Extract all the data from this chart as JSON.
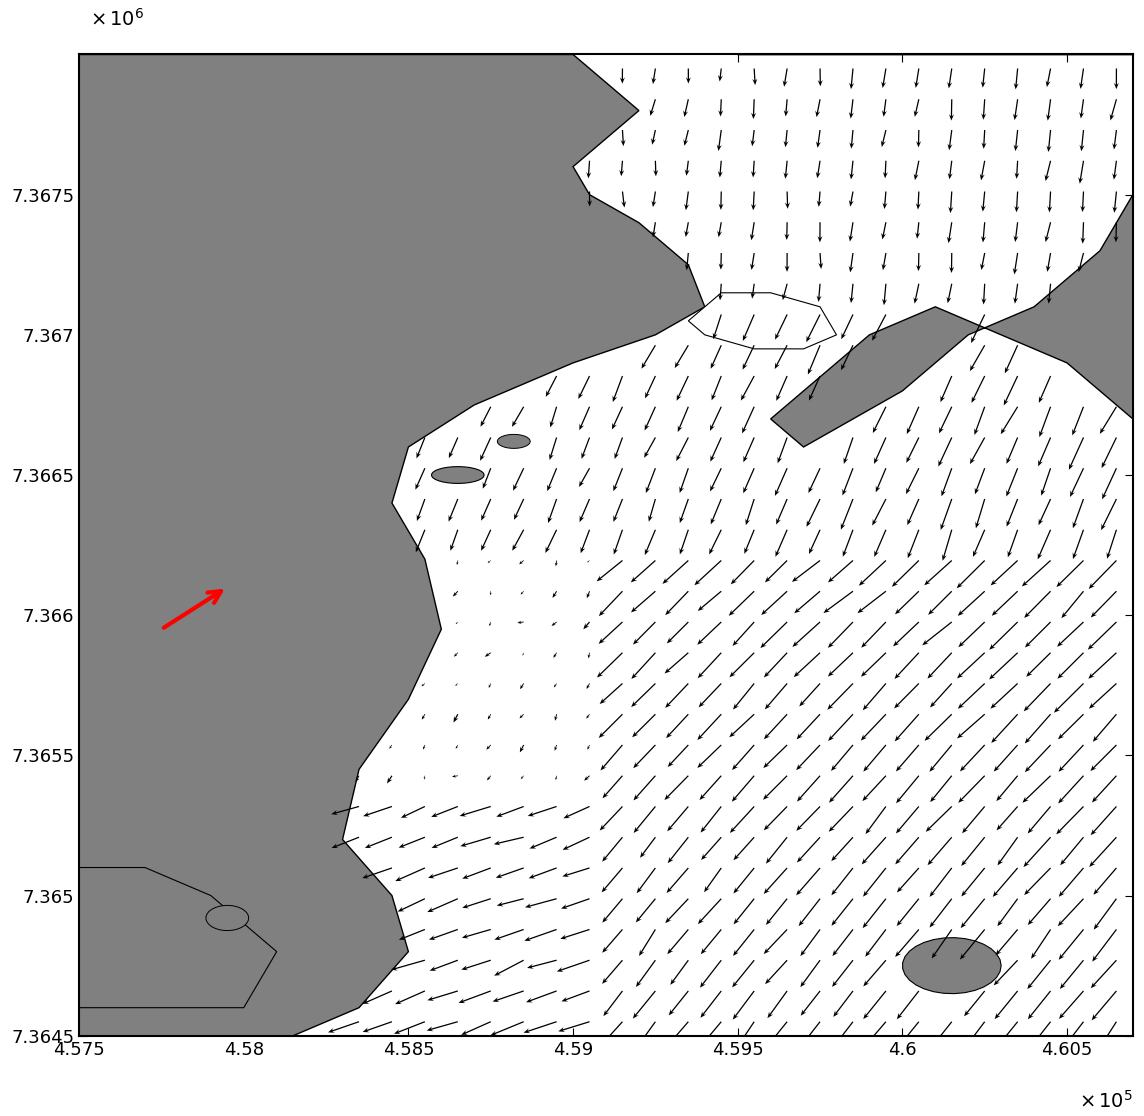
{
  "xlim": [
    457500,
    460700
  ],
  "ylim": [
    7364500,
    7368000
  ],
  "xlabel_scale": "x 10$^5$",
  "ylabel_scale": "x 10$^6$",
  "xticks": [
    457500,
    458000,
    458500,
    459000,
    459500,
    460000,
    460500
  ],
  "yticks": [
    7364500,
    7365000,
    7365500,
    7366000,
    7366500,
    7367000,
    7367500
  ],
  "xtick_labels": [
    "4.575",
    "4.58",
    "4.585",
    "4.59",
    "4.595",
    "4.6",
    "4.605"
  ],
  "ytick_labels": [
    "7.3645",
    "7.365",
    "7.3655",
    "7.366",
    "7.3665",
    "7.367",
    "7.3675"
  ],
  "land_color": "#808080",
  "ocean_color": "#ffffff",
  "arrow_color": "#000000",
  "ref_arrow_color": "#ff0000",
  "background_color": "#ffffff",
  "figsize": [
    11.44,
    11.16
  ],
  "dpi": 100
}
